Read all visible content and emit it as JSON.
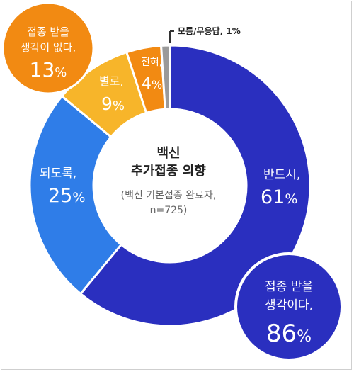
{
  "chart_data": {
    "type": "pie",
    "style": "donut",
    "center_title": [
      "백신",
      "추가접종 의향"
    ],
    "center_subtitle": [
      "(백신 기본접종 완료자,",
      "n=725)"
    ],
    "categories": [
      "반드시",
      "되도록",
      "별로",
      "전혀",
      "모름/무응답"
    ],
    "values": [
      61,
      25,
      9,
      4,
      1
    ],
    "colors": [
      "#2a2fbf",
      "#2f7de8",
      "#f7b52a",
      "#f28a12",
      "#9a9a9a"
    ],
    "slice_labels": [
      {
        "name": "반드시,",
        "value": "61",
        "unit": "%"
      },
      {
        "name": "되도록,",
        "value": "25",
        "unit": "%"
      },
      {
        "name": "별로,",
        "value": "9",
        "unit": "%"
      },
      {
        "name": "전혀,",
        "value": "4",
        "unit": "%"
      },
      {
        "name": "모름/무응답,",
        "value": "1%",
        "unit": ""
      }
    ],
    "callouts": [
      {
        "lines": [
          "접종 받을",
          "생각이 없다,"
        ],
        "value": "13",
        "unit": "%",
        "color": "#f28a12"
      },
      {
        "lines": [
          "접종 받을",
          "생각이다,"
        ],
        "value": "86",
        "unit": "%",
        "color": "#2a2fbf"
      }
    ]
  }
}
